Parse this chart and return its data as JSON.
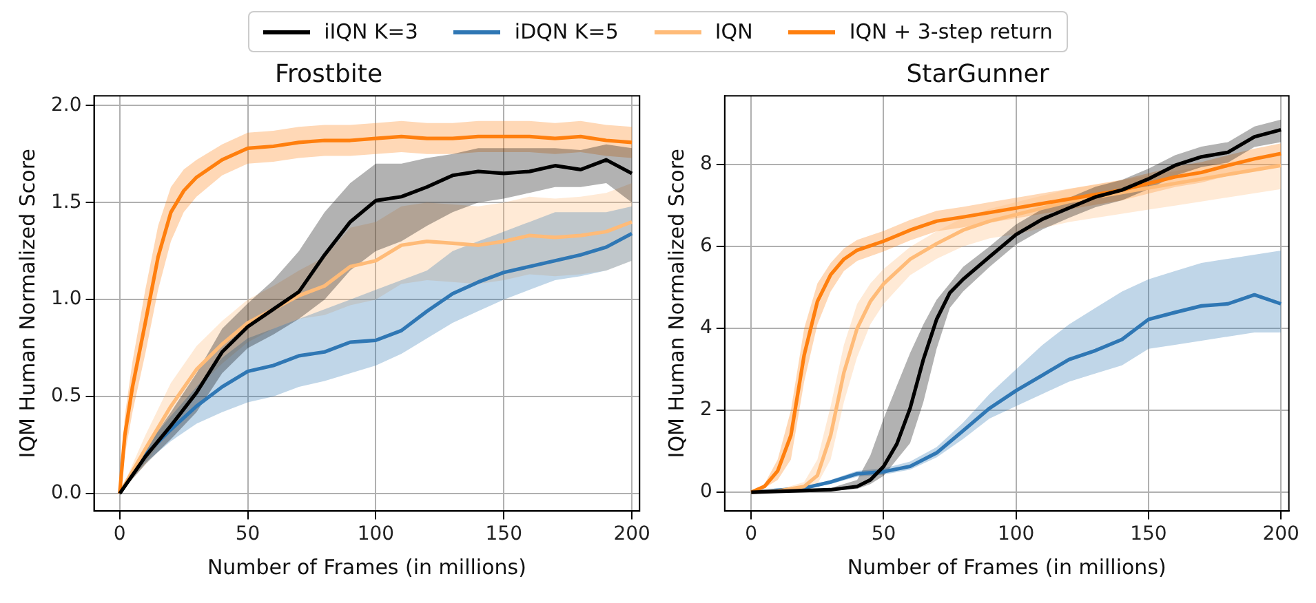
{
  "chart_data": [
    {
      "type": "line",
      "title": "Frostbite",
      "xlabel": "Number of Frames (in millions)",
      "ylabel": "IQM Human Normalized Score",
      "xlim": [
        -10,
        203
      ],
      "ylim": [
        -0.09,
        2.05
      ],
      "xticks": [
        0,
        50,
        100,
        150,
        200
      ],
      "yticks": [
        {
          "value": 0,
          "label": "0.0"
        },
        {
          "value": 0.5,
          "label": "0.5"
        },
        {
          "value": 1,
          "label": "1.0"
        },
        {
          "value": 1.5,
          "label": "1.5"
        },
        {
          "value": 2,
          "label": "2.0"
        }
      ],
      "grid": true,
      "legend": "top",
      "line_style": "solid",
      "marker": "none",
      "series": [
        {
          "name": "iIQN K=3",
          "color": "#000000",
          "x": [
            0,
            10,
            20,
            30,
            40,
            50,
            60,
            70,
            80,
            90,
            100,
            110,
            120,
            130,
            140,
            150,
            160,
            170,
            180,
            190,
            200
          ],
          "values": [
            0,
            0.19,
            0.35,
            0.52,
            0.73,
            0.86,
            0.95,
            1.04,
            1.23,
            1.4,
            1.51,
            1.53,
            1.58,
            1.64,
            1.66,
            1.65,
            1.66,
            1.69,
            1.67,
            1.72,
            1.65
          ],
          "lower": [
            0,
            0.15,
            0.28,
            0.42,
            0.62,
            0.75,
            0.82,
            0.9,
            1.0,
            1.15,
            1.25,
            1.3,
            1.38,
            1.45,
            1.5,
            1.52,
            1.55,
            1.58,
            1.58,
            1.6,
            1.5
          ],
          "upper": [
            0,
            0.23,
            0.42,
            0.62,
            0.85,
            0.98,
            1.1,
            1.25,
            1.45,
            1.6,
            1.7,
            1.7,
            1.73,
            1.75,
            1.78,
            1.78,
            1.78,
            1.78,
            1.77,
            1.8,
            1.78
          ]
        },
        {
          "name": "iDQN K=5",
          "color": "#2f77b4",
          "x": [
            0,
            10,
            20,
            30,
            40,
            50,
            60,
            70,
            80,
            90,
            100,
            110,
            120,
            130,
            140,
            150,
            160,
            170,
            180,
            190,
            200
          ],
          "values": [
            0,
            0.2,
            0.33,
            0.45,
            0.55,
            0.63,
            0.66,
            0.71,
            0.73,
            0.78,
            0.79,
            0.84,
            0.94,
            1.03,
            1.09,
            1.14,
            1.17,
            1.2,
            1.23,
            1.27,
            1.34
          ],
          "lower": [
            0,
            0.16,
            0.27,
            0.36,
            0.42,
            0.47,
            0.5,
            0.55,
            0.58,
            0.62,
            0.66,
            0.72,
            0.8,
            0.88,
            0.94,
            1.0,
            1.05,
            1.1,
            1.12,
            1.15,
            1.2
          ],
          "upper": [
            0,
            0.24,
            0.4,
            0.55,
            0.7,
            0.8,
            0.85,
            0.9,
            0.95,
            1.0,
            1.05,
            1.1,
            1.15,
            1.25,
            1.3,
            1.35,
            1.4,
            1.45,
            1.45,
            1.45,
            1.48
          ]
        },
        {
          "name": "IQN",
          "color": "#ffbb78",
          "x": [
            0,
            10,
            20,
            30,
            40,
            50,
            60,
            70,
            80,
            90,
            100,
            110,
            120,
            130,
            140,
            150,
            160,
            170,
            180,
            190,
            200
          ],
          "values": [
            0,
            0.23,
            0.45,
            0.64,
            0.77,
            0.88,
            0.95,
            1.02,
            1.07,
            1.17,
            1.2,
            1.28,
            1.3,
            1.29,
            1.28,
            1.3,
            1.33,
            1.32,
            1.33,
            1.35,
            1.4
          ],
          "lower": [
            0,
            0.15,
            0.35,
            0.54,
            0.67,
            0.78,
            0.85,
            0.9,
            0.92,
            0.97,
            1.0,
            1.08,
            1.1,
            1.09,
            1.08,
            1.1,
            1.13,
            1.12,
            1.13,
            1.15,
            1.2
          ],
          "upper": [
            0,
            0.3,
            0.57,
            0.76,
            0.89,
            1.0,
            1.07,
            1.15,
            1.22,
            1.37,
            1.4,
            1.48,
            1.5,
            1.49,
            1.48,
            1.5,
            1.53,
            1.52,
            1.53,
            1.55,
            1.6
          ]
        },
        {
          "name": "IQN + 3-step return",
          "color": "#ff7f0e",
          "x": [
            0,
            2,
            5,
            10,
            15,
            20,
            25,
            30,
            40,
            50,
            60,
            70,
            80,
            90,
            100,
            110,
            120,
            130,
            140,
            150,
            160,
            170,
            180,
            190,
            200
          ],
          "values": [
            0,
            0.3,
            0.55,
            0.88,
            1.22,
            1.45,
            1.56,
            1.63,
            1.72,
            1.78,
            1.79,
            1.81,
            1.82,
            1.82,
            1.83,
            1.84,
            1.83,
            1.83,
            1.84,
            1.84,
            1.84,
            1.83,
            1.84,
            1.82,
            1.81
          ],
          "lower": [
            0,
            0.2,
            0.42,
            0.72,
            1.05,
            1.3,
            1.45,
            1.53,
            1.64,
            1.7,
            1.71,
            1.73,
            1.74,
            1.74,
            1.75,
            1.76,
            1.75,
            1.75,
            1.76,
            1.76,
            1.76,
            1.75,
            1.76,
            1.74,
            1.73
          ],
          "upper": [
            0,
            0.4,
            0.68,
            1.05,
            1.38,
            1.58,
            1.67,
            1.72,
            1.8,
            1.86,
            1.87,
            1.89,
            1.9,
            1.9,
            1.91,
            1.92,
            1.91,
            1.91,
            1.92,
            1.92,
            1.92,
            1.91,
            1.92,
            1.9,
            1.89
          ]
        }
      ]
    },
    {
      "type": "line",
      "title": "StarGunner",
      "xlabel": "Number of Frames (in millions)",
      "ylabel": "IQM Human Normalized Score",
      "xlim": [
        -10,
        203
      ],
      "ylim": [
        -0.46,
        9.68
      ],
      "xticks": [
        0,
        50,
        100,
        150,
        200
      ],
      "yticks": [
        0,
        2,
        4,
        6,
        8
      ],
      "grid": true,
      "line_style": "solid",
      "marker": "none",
      "series": [
        {
          "color": "#000000",
          "x": [
            0,
            10,
            20,
            30,
            40,
            45,
            50,
            55,
            60,
            65,
            70,
            75,
            80,
            90,
            100,
            110,
            120,
            130,
            140,
            150,
            160,
            170,
            180,
            190,
            200
          ],
          "values": [
            0,
            0.02,
            0.04,
            0.06,
            0.14,
            0.3,
            0.63,
            1.18,
            2.05,
            3.24,
            4.22,
            4.87,
            5.2,
            5.75,
            6.29,
            6.67,
            6.94,
            7.21,
            7.38,
            7.65,
            7.98,
            8.19,
            8.3,
            8.68,
            8.85
          ],
          "lower": [
            0,
            0.01,
            0.02,
            0.03,
            0.08,
            0.2,
            0.4,
            0.8,
            1.2,
            2.2,
            3.5,
            4.5,
            4.9,
            5.5,
            6.05,
            6.42,
            6.7,
            6.96,
            7.13,
            7.4,
            7.73,
            7.94,
            8.05,
            8.43,
            8.55
          ],
          "upper": [
            0,
            0.03,
            0.06,
            0.1,
            0.3,
            0.9,
            1.8,
            2.6,
            3.4,
            4.1,
            4.7,
            5.1,
            5.5,
            6.0,
            6.54,
            6.92,
            7.19,
            7.46,
            7.63,
            7.9,
            8.23,
            8.44,
            8.55,
            8.93,
            9.1
          ]
        },
        {
          "color": "#2f77b4",
          "x": [
            0,
            10,
            20,
            30,
            40,
            50,
            60,
            70,
            80,
            90,
            100,
            110,
            120,
            130,
            140,
            150,
            160,
            170,
            180,
            190,
            200
          ],
          "values": [
            0,
            0.05,
            0.1,
            0.25,
            0.45,
            0.5,
            0.63,
            0.96,
            1.5,
            2.05,
            2.48,
            2.86,
            3.24,
            3.46,
            3.73,
            4.22,
            4.39,
            4.55,
            4.6,
            4.82,
            4.6
          ],
          "lower": [
            0,
            0.03,
            0.07,
            0.2,
            0.38,
            0.43,
            0.55,
            0.85,
            1.3,
            1.8,
            2.1,
            2.4,
            2.7,
            2.9,
            3.1,
            3.5,
            3.6,
            3.7,
            3.8,
            3.9,
            3.9
          ],
          "upper": [
            0,
            0.07,
            0.13,
            0.3,
            0.52,
            0.58,
            0.75,
            1.1,
            1.7,
            2.4,
            3.0,
            3.6,
            4.1,
            4.5,
            4.9,
            5.2,
            5.4,
            5.6,
            5.7,
            5.8,
            5.9
          ]
        },
        {
          "color": "#ffbb78",
          "x": [
            0,
            10,
            20,
            25,
            30,
            35,
            40,
            45,
            50,
            60,
            70,
            80,
            90,
            100,
            110,
            120,
            130,
            140,
            150,
            160,
            170,
            180,
            190,
            200
          ],
          "values": [
            0,
            0.03,
            0.14,
            0.41,
            1.39,
            2.92,
            4.0,
            4.66,
            5.09,
            5.69,
            6.07,
            6.4,
            6.62,
            6.78,
            6.94,
            7.1,
            7.21,
            7.32,
            7.43,
            7.54,
            7.65,
            7.76,
            7.87,
            7.98
          ],
          "lower": [
            0,
            0.02,
            0.08,
            0.2,
            0.8,
            2.2,
            3.3,
            4.1,
            4.6,
            5.3,
            5.7,
            6.0,
            6.2,
            6.3,
            6.45,
            6.6,
            6.7,
            6.8,
            6.9,
            7.0,
            7.1,
            7.2,
            7.3,
            7.4
          ],
          "upper": [
            0,
            0.05,
            0.25,
            0.8,
            2.1,
            3.6,
            4.6,
            5.1,
            5.45,
            5.99,
            6.37,
            6.7,
            6.92,
            7.08,
            7.24,
            7.4,
            7.51,
            7.62,
            7.73,
            7.84,
            7.95,
            8.06,
            8.17,
            8.28
          ]
        },
        {
          "color": "#ff7f0e",
          "x": [
            0,
            5,
            10,
            15,
            20,
            25,
            30,
            35,
            40,
            50,
            60,
            70,
            80,
            90,
            100,
            110,
            120,
            130,
            140,
            150,
            160,
            170,
            180,
            190,
            200
          ],
          "values": [
            0,
            0.14,
            0.52,
            1.39,
            3.35,
            4.66,
            5.31,
            5.69,
            5.91,
            6.13,
            6.4,
            6.62,
            6.72,
            6.83,
            6.94,
            7.05,
            7.16,
            7.27,
            7.38,
            7.54,
            7.7,
            7.81,
            7.98,
            8.14,
            8.27
          ],
          "lower": [
            0,
            0.1,
            0.3,
            0.8,
            2.7,
            4.1,
            4.9,
            5.4,
            5.65,
            5.88,
            6.15,
            6.37,
            6.47,
            6.58,
            6.69,
            6.8,
            6.91,
            7.02,
            7.13,
            7.29,
            7.45,
            7.56,
            7.73,
            7.89,
            8.02
          ],
          "upper": [
            0,
            0.2,
            0.8,
            2.0,
            4.0,
            5.1,
            5.6,
            5.95,
            6.16,
            6.38,
            6.65,
            6.87,
            6.97,
            7.08,
            7.19,
            7.3,
            7.41,
            7.52,
            7.63,
            7.79,
            7.95,
            8.06,
            8.23,
            8.39,
            8.52
          ]
        }
      ]
    }
  ]
}
